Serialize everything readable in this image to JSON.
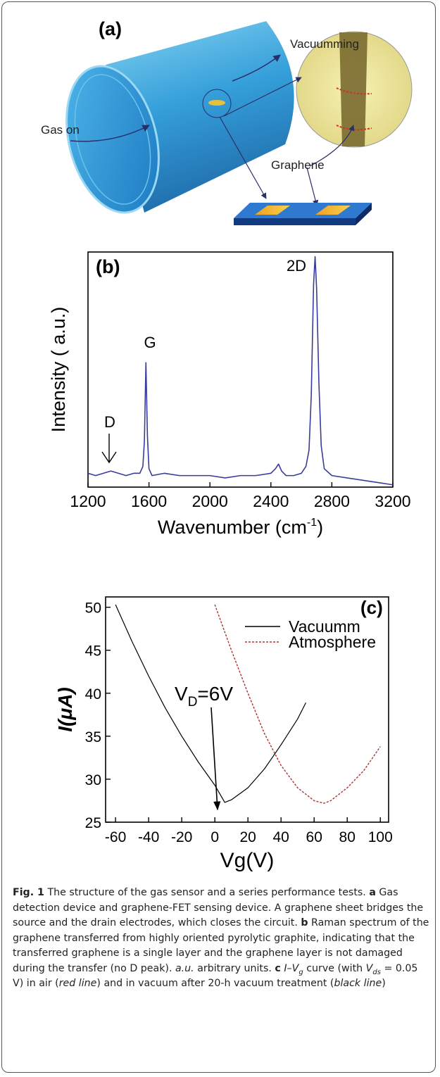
{
  "panel_a": {
    "label": "(a)",
    "vacuum_label": "Vacuumming",
    "gas_label": "Gas on",
    "graphene_label": "Graphene"
  },
  "chart_data": [
    {
      "type": "line",
      "panel_label": "(b)",
      "y_label": "Intensity ( a.u.)",
      "x_label": "Wavenumber (cm",
      "x_label_sup": "-1",
      "x_label_end": ")",
      "annotations": [
        "G",
        "2D",
        "D"
      ],
      "color": "#3a3c9c",
      "x": [
        1200,
        1250,
        1300,
        1350,
        1400,
        1450,
        1500,
        1540,
        1560,
        1570,
        1580,
        1590,
        1600,
        1620,
        1700,
        1800,
        1900,
        2000,
        2100,
        2200,
        2300,
        2400,
        2430,
        2450,
        2470,
        2500,
        2550,
        2600,
        2630,
        2650,
        2665,
        2680,
        2690,
        2700,
        2715,
        2730,
        2750,
        2800,
        2900,
        3000,
        3100,
        3200
      ],
      "values": [
        6,
        5,
        6,
        7,
        6,
        5,
        6,
        6,
        9,
        20,
        54,
        22,
        8,
        5,
        6,
        5,
        5,
        5,
        4,
        5,
        5,
        6,
        8,
        10,
        7,
        5,
        5,
        6,
        9,
        16,
        40,
        88,
        100,
        86,
        45,
        18,
        8,
        5,
        4,
        3,
        2,
        1
      ],
      "xlim": [
        1200,
        3200
      ],
      "xticks": [
        1200,
        1600,
        2000,
        2400,
        2800,
        3200
      ],
      "ylim": [
        0,
        102
      ]
    },
    {
      "type": "line",
      "panel_label": "(c)",
      "y_label": "I(μA)",
      "x_label": "Vg(V)",
      "annotation": {
        "text": "V",
        "subscript": "D",
        "rest": "=6V"
      },
      "series": [
        {
          "name": "Vacuumm",
          "color": "#000000",
          "linestyle": "solid",
          "x": [
            -60,
            -50,
            -40,
            -30,
            -20,
            -10,
            0,
            6,
            10,
            20,
            30,
            40,
            50,
            55
          ],
          "values": [
            50.3,
            46.0,
            42.0,
            38.3,
            35.0,
            32.0,
            29.3,
            27.3,
            27.6,
            29.0,
            31.2,
            34.0,
            37.0,
            38.9
          ]
        },
        {
          "name": "Atmosphere",
          "color": "#b03030",
          "linestyle": "dashed",
          "x": [
            0,
            10,
            20,
            30,
            40,
            50,
            60,
            66,
            70,
            80,
            90,
            100
          ],
          "values": [
            50.3,
            45.0,
            40.0,
            35.3,
            31.6,
            29.0,
            27.5,
            27.2,
            27.5,
            29.0,
            31.0,
            33.8
          ]
        }
      ],
      "xlim": [
        -66,
        105
      ],
      "xticks": [
        -60,
        -40,
        -20,
        0,
        20,
        40,
        60,
        80,
        100
      ],
      "ylim": [
        25,
        51.2
      ],
      "yticks": [
        25,
        30,
        35,
        40,
        45,
        50
      ]
    }
  ],
  "caption": {
    "parts": [
      "Fig. 1",
      "The structure of the gas sensor and a series performance tests.",
      "a",
      "Gas detection device and graphene-FET sensing device. A graphene sheet bridges the source and the drain electrodes, which closes the circuit.",
      "b",
      "Raman spectrum of the graphene transferred from highly oriented pyrolytic graphite, indicating that the transferred graphene is a single layer and the graphene layer is not damaged during the transfer (no D peak).",
      "a.u.",
      "arbitrary units.",
      "c",
      "I",
      "–",
      "V",
      "g",
      "curve (with",
      "V",
      "ds",
      "= 0.05 V) in air (",
      "red line",
      ") and in vacuum after 20-h vacuum treatment (",
      "black line",
      ")"
    ]
  }
}
